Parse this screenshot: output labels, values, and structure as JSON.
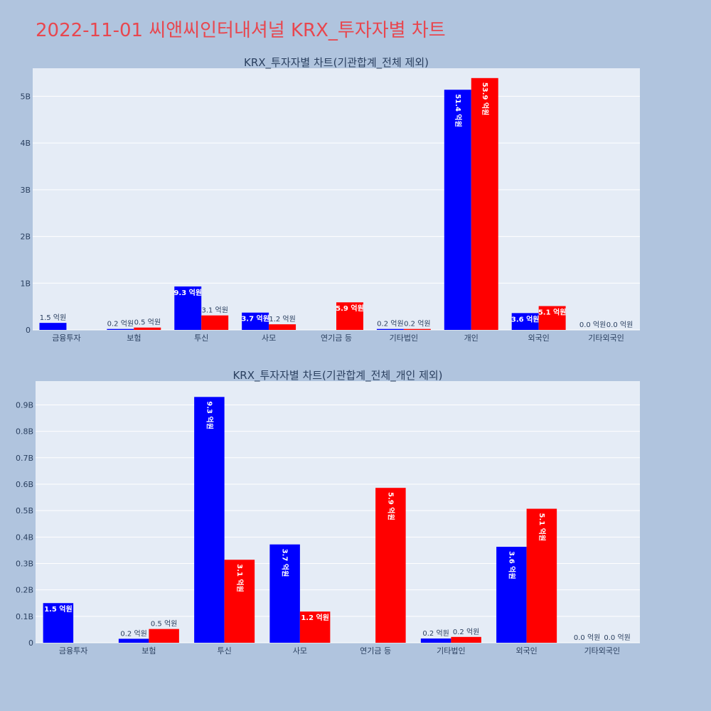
{
  "title": "2022-11-01 씨앤씨인터내셔널 KRX_투자자별 차트",
  "colors": {
    "buy": "#0000ff",
    "sell": "#ff0000",
    "plot_bg": "#e5ecf6",
    "page_bg": "#b0c4de",
    "title": "#e8474f"
  },
  "chart_data": [
    {
      "type": "bar",
      "title": "KRX_투자자별 차트(기관합계_전체 제외)",
      "categories": [
        "금융투자",
        "보험",
        "투신",
        "사모",
        "연기금 등",
        "기타법인",
        "개인",
        "외국인",
        "기타외국인"
      ],
      "series": [
        {
          "values": [
            0.15,
            0.02,
            0.93,
            0.37,
            0,
            0.02,
            5.14,
            0.36,
            0.0
          ],
          "labels": [
            "1.5 억원",
            "0.2 억원",
            "9.3 억원",
            "3.7 억원",
            "",
            "0.2 억원",
            "51.4 억원",
            "3.6 억원",
            "0.0 억원"
          ]
        },
        {
          "values": [
            0,
            0.05,
            0.31,
            0.12,
            0.59,
            0.02,
            5.39,
            0.51,
            0.0
          ],
          "labels": [
            "",
            "0.5 억원",
            "3.1 억원",
            "1.2 억원",
            "5.9 억원",
            "0.2 억원",
            "53.9 억원",
            "5.1 억원",
            "0.0 억원"
          ]
        }
      ],
      "ylim": [
        0,
        5.6
      ],
      "yticks": [
        0,
        1,
        2,
        3,
        4,
        5
      ],
      "ytick_labels": [
        "0",
        "1B",
        "2B",
        "3B",
        "4B",
        "5B"
      ],
      "grid": true
    },
    {
      "type": "bar",
      "title": "KRX_투자자별 차트(기관합계_전체_개인 제외)",
      "categories": [
        "금융투자",
        "보험",
        "투신",
        "사모",
        "연기금 등",
        "기타법인",
        "외국인",
        "기타외국인"
      ],
      "series": [
        {
          "values": [
            0.15,
            0.015,
            0.93,
            0.372,
            0,
            0.016,
            0.363,
            0.0
          ],
          "labels": [
            "1.5 억원",
            "0.2 억원",
            "9.3 억원",
            "3.7 억원",
            "",
            "0.2 억원",
            "3.6 억원",
            "0.0 억원"
          ]
        },
        {
          "values": [
            0,
            0.052,
            0.314,
            0.118,
            0.586,
            0.022,
            0.507,
            0.0
          ],
          "labels": [
            "",
            "0.5 억원",
            "3.1 억원",
            "1.2 억원",
            "5.9 억원",
            "0.2 억원",
            "5.1 억원",
            "0.0 억원"
          ]
        }
      ],
      "ylim": [
        0,
        0.99
      ],
      "yticks": [
        0,
        0.1,
        0.2,
        0.3,
        0.4,
        0.5,
        0.6,
        0.7,
        0.8,
        0.9
      ],
      "ytick_labels": [
        "0",
        "0.1B",
        "0.2B",
        "0.3B",
        "0.4B",
        "0.5B",
        "0.6B",
        "0.7B",
        "0.8B",
        "0.9B"
      ],
      "grid": true
    }
  ]
}
